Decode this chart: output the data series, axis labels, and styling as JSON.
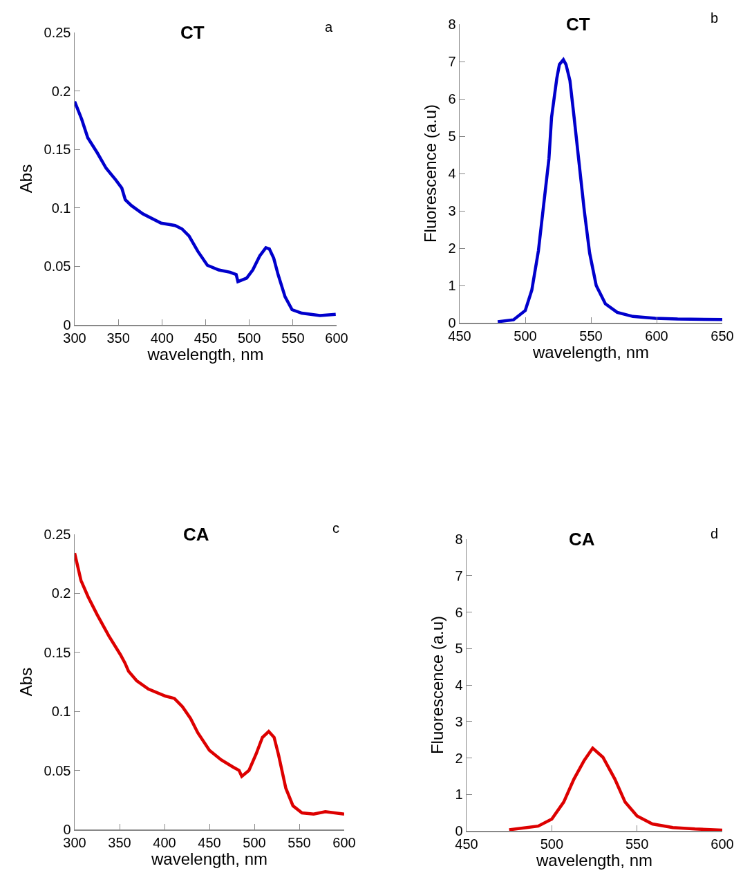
{
  "chart_data": [
    {
      "type": "line",
      "title": "CT",
      "annotations": [
        "a"
      ],
      "xlabel": "wavelength, nm",
      "ylabel": "Abs",
      "xlim": [
        300,
        600
      ],
      "xticks": [
        300,
        350,
        400,
        450,
        500,
        550,
        600
      ],
      "ylim": [
        0,
        0.25
      ],
      "yticks": [
        0,
        0.05,
        0.1,
        0.15,
        0.2,
        0.25
      ],
      "grid": false,
      "marker": "none",
      "line_style": "solid",
      "series": [
        {
          "color": "#0000cc",
          "x": [
            300,
            308,
            315,
            326,
            336,
            347,
            354,
            358,
            365,
            378,
            399,
            415,
            423,
            431,
            441,
            452,
            465,
            478,
            485,
            487,
            497,
            504,
            512,
            519,
            523,
            528,
            533,
            541,
            549,
            560,
            581,
            599
          ],
          "values": [
            0.191,
            0.176,
            0.16,
            0.147,
            0.134,
            0.124,
            0.117,
            0.107,
            0.102,
            0.095,
            0.087,
            0.085,
            0.082,
            0.076,
            0.063,
            0.051,
            0.047,
            0.045,
            0.043,
            0.037,
            0.04,
            0.047,
            0.059,
            0.066,
            0.065,
            0.057,
            0.043,
            0.024,
            0.013,
            0.01,
            0.008,
            0.009
          ]
        }
      ]
    },
    {
      "type": "line",
      "title": "CT",
      "annotations": [
        "b"
      ],
      "xlabel": "wavelength, nm",
      "ylabel": "Fluorescence (a.u)",
      "xlim": [
        450,
        650
      ],
      "xticks": [
        450,
        500,
        550,
        600,
        650
      ],
      "ylim": [
        0,
        8
      ],
      "yticks": [
        0,
        1,
        2,
        3,
        4,
        5,
        6,
        7,
        8
      ],
      "grid": false,
      "marker": "none",
      "line_style": "solid",
      "series": [
        {
          "color": "#0000cc",
          "x": [
            479,
            491,
            500,
            505,
            510,
            514,
            518,
            520,
            524,
            526,
            529,
            531,
            534,
            537,
            541,
            545,
            549,
            554,
            561,
            570,
            582,
            599,
            616,
            650
          ],
          "values": [
            0.03,
            0.08,
            0.33,
            0.88,
            1.93,
            3.16,
            4.39,
            5.5,
            6.55,
            6.92,
            7.05,
            6.92,
            6.49,
            5.56,
            4.27,
            2.98,
            1.87,
            1.0,
            0.51,
            0.28,
            0.17,
            0.12,
            0.1,
            0.09
          ]
        }
      ]
    },
    {
      "type": "line",
      "title": "CA",
      "annotations": [
        "c"
      ],
      "xlabel": "wavelength, nm",
      "ylabel": "Abs",
      "xlim": [
        300,
        600
      ],
      "xticks": [
        300,
        350,
        400,
        450,
        500,
        550,
        600
      ],
      "ylim": [
        0,
        0.25
      ],
      "yticks": [
        0,
        0.05,
        0.1,
        0.15,
        0.2,
        0.25
      ],
      "grid": false,
      "marker": "none",
      "line_style": "solid",
      "series": [
        {
          "color": "#dd0000",
          "x": [
            300,
            307,
            315,
            325,
            338,
            351,
            356,
            360,
            369,
            382,
            401,
            411,
            420,
            429,
            437,
            450,
            463,
            476,
            483,
            486,
            494,
            502,
            509,
            516,
            522,
            527,
            535,
            543,
            553,
            566,
            579,
            600
          ],
          "values": [
            0.234,
            0.211,
            0.197,
            0.182,
            0.164,
            0.148,
            0.141,
            0.134,
            0.126,
            0.119,
            0.113,
            0.111,
            0.104,
            0.094,
            0.082,
            0.067,
            0.059,
            0.053,
            0.05,
            0.045,
            0.05,
            0.064,
            0.078,
            0.083,
            0.078,
            0.063,
            0.035,
            0.02,
            0.014,
            0.013,
            0.015,
            0.013
          ]
        }
      ]
    },
    {
      "type": "line",
      "title": "CA",
      "annotations": [
        "d"
      ],
      "xlabel": "wavelength, nm",
      "ylabel": "Fluorescence (a.u)",
      "xlim": [
        450,
        600
      ],
      "xticks": [
        450,
        500,
        550,
        600
      ],
      "ylim": [
        0,
        8
      ],
      "yticks": [
        0,
        1,
        2,
        3,
        4,
        5,
        6,
        7,
        8
      ],
      "grid": false,
      "marker": "none",
      "line_style": "solid",
      "series": [
        {
          "color": "#dd0000",
          "x": [
            475,
            492,
            500,
            507,
            513,
            519,
            524,
            530,
            537,
            543,
            550,
            559,
            571,
            584,
            600
          ],
          "values": [
            0.03,
            0.13,
            0.32,
            0.79,
            1.42,
            1.93,
            2.27,
            2.02,
            1.42,
            0.79,
            0.41,
            0.19,
            0.09,
            0.05,
            0.02
          ]
        }
      ]
    }
  ]
}
